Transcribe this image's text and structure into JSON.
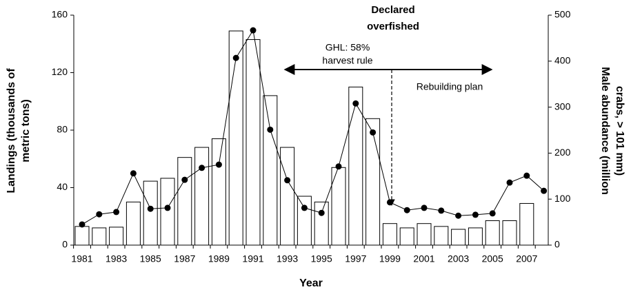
{
  "chart_data": {
    "type": "bar_line",
    "x_label": "Year",
    "y_label": [
      "Landings (thousands of",
      "metric tons)"
    ],
    "y2_label": [
      "Male abundance (million",
      "crabs, > 101 mm)"
    ],
    "annotations": {
      "declared": [
        "Declared",
        "overfished"
      ],
      "ghl": [
        "GHL: 58%",
        "harvest rule"
      ],
      "rebuilding": "Rebuilding plan"
    },
    "categories": [
      "1981",
      null,
      "1983",
      null,
      "1985",
      null,
      "1987",
      null,
      "1989",
      null,
      "1991",
      null,
      "1993",
      null,
      "1995",
      null,
      "1997",
      null,
      "1999",
      null,
      "2001",
      null,
      "2003",
      null,
      "2005",
      null,
      "2007",
      null
    ],
    "series": [
      {
        "name": "Landings",
        "color": "#ffffff",
        "axis": "y",
        "values": [
          13,
          12,
          12.5,
          30,
          44.5,
          46.5,
          61,
          68,
          74,
          149,
          143,
          104,
          68,
          34,
          30,
          54,
          110,
          88,
          15,
          12,
          15,
          13,
          11,
          12,
          17,
          17,
          29,
          null
        ]
      },
      {
        "name": "Male abundance",
        "color": "#000000",
        "axis": "y2",
        "values": [
          45,
          67,
          72,
          156,
          79,
          81,
          142,
          168,
          175,
          407,
          467,
          251,
          141,
          81,
          70,
          171,
          308,
          245,
          93,
          76,
          81,
          75,
          64,
          66,
          69,
          136,
          151,
          118
        ]
      }
    ],
    "ylim": [
      0,
      160
    ],
    "yticks": [
      0,
      40,
      80,
      120,
      160
    ],
    "y2lim": [
      0,
      500
    ],
    "y2ticks": [
      0,
      100,
      200,
      300,
      400,
      500
    ]
  }
}
